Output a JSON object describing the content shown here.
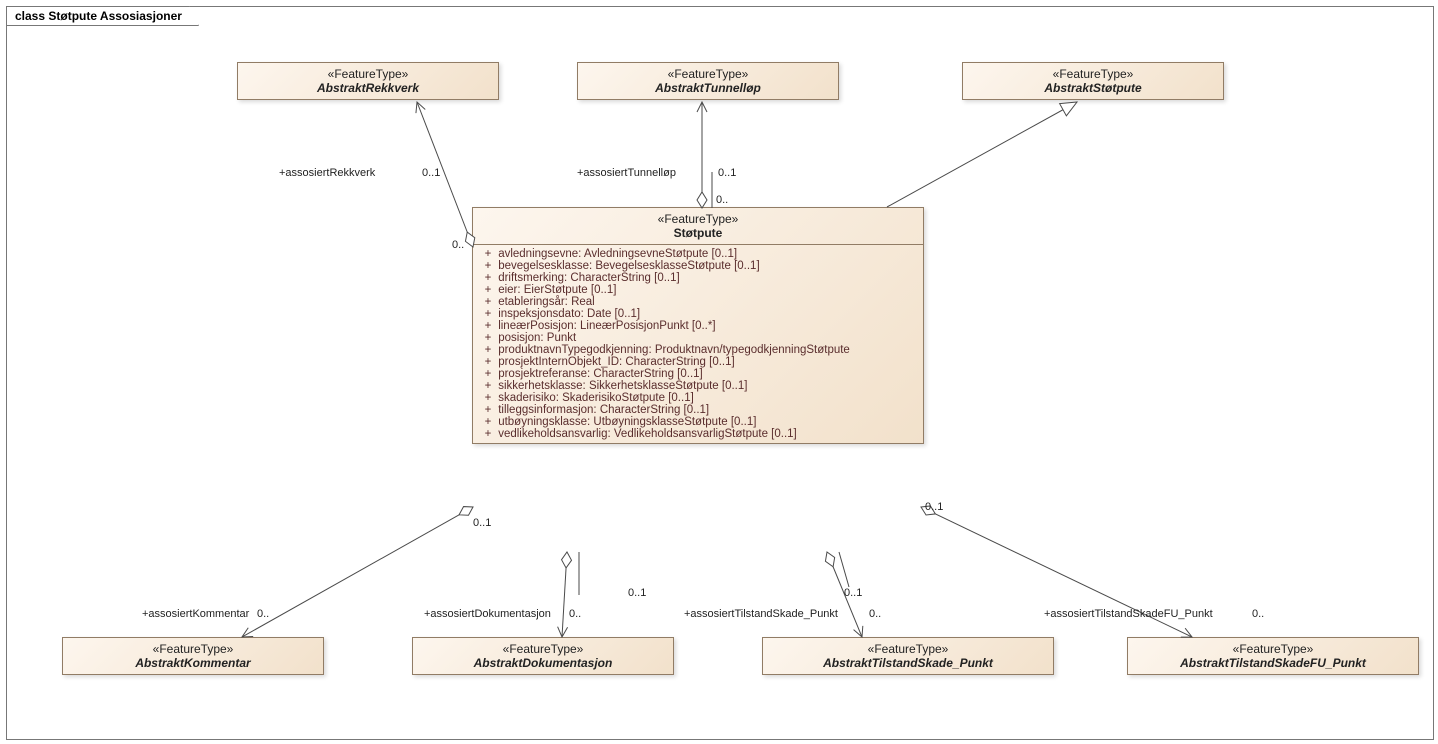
{
  "diagram_title": "class Støtpute Assosiasjoner",
  "stereotype": "«FeatureType»",
  "colors": {
    "box_grad_start": "#fdf6ee",
    "box_grad_end": "#f2e1cb",
    "box_border": "#917c65",
    "line": "#4a4a4a",
    "attr_text": "#5a2d2d"
  },
  "classes": {
    "rekkverk": {
      "name": "AbstraktRekkverk"
    },
    "tunnellop": {
      "name": "AbstraktTunnelløp"
    },
    "stotpute_abs": {
      "name": "AbstraktStøtpute"
    },
    "kommentar": {
      "name": "AbstraktKommentar"
    },
    "dokumentasjon": {
      "name": "AbstraktDokumentasjon"
    },
    "tilstand_punkt": {
      "name": "AbstraktTilstandSkade_Punkt"
    },
    "tilstand_fu": {
      "name": "AbstraktTilstandSkadeFU_Punkt"
    },
    "stotpute": {
      "name": "Støtpute"
    }
  },
  "attributes": [
    "avledningsevne: AvledningsevneStøtpute [0..1]",
    "bevegelsesklasse: BevegelsesklasseStøtpute [0..1]",
    "driftsmerking: CharacterString [0..1]",
    "eier: EierStøtpute [0..1]",
    "etableringsår: Real",
    "inspeksjonsdato: Date [0..1]",
    "lineærPosisjon: LineærPosisjonPunkt [0..*]",
    "posisjon: Punkt",
    "produktnavnTypegodkjenning: Produktnavn/typegodkjenningStøtpute",
    "prosjektInternObjekt_ID: CharacterString [0..1]",
    "prosjektreferanse: CharacterString [0..1]",
    "sikkerhetsklasse: SikkerhetsklasseStøtpute [0..1]",
    "skaderisiko: SkaderisikoStøtpute [0..1]",
    "tilleggsinformasjon: CharacterString [0..1]",
    "utbøyningsklasse: UtbøyningsklasseStøtpute [0..1]",
    "vedlikeholdsansvarlig: VedlikeholdsansvarligStøtpute [0..1]"
  ],
  "labels": {
    "rekkverk_role": "+assosiertRekkverk",
    "rekkverk_m1": "0..1",
    "rekkverk_m2": "0..",
    "tunnel_role": "+assosiertTunnelløp",
    "tunnel_m1": "0..1",
    "tunnel_m2": "0..",
    "komm_role": "+assosiertKommentar",
    "komm_m1": "0..1",
    "komm_m2": "0..",
    "dok_role": "+assosiertDokumentasjon",
    "dok_m1": "0..1",
    "dok_m2": "0..",
    "tp_role": "+assosiertTilstandSkade_Punkt",
    "tp_m1": "0..1",
    "tp_m2": "0..",
    "tfu_role": "+assosiertTilstandSkadeFU_Punkt",
    "tfu_m1": "0..1",
    "tfu_m2": "0.."
  }
}
